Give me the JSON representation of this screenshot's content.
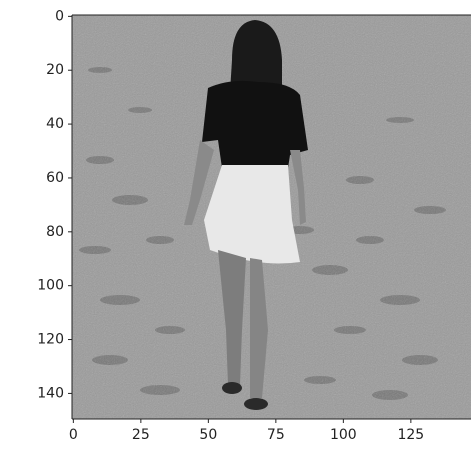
{
  "chart_data": {
    "type": "image",
    "xlim": [
      -0.5,
      149.5
    ],
    "ylim": [
      149.5,
      -0.5
    ],
    "xticks": [
      0,
      25,
      50,
      75,
      100,
      125
    ],
    "yticks": [
      0,
      20,
      40,
      60,
      80,
      100,
      120,
      140
    ]
  }
}
